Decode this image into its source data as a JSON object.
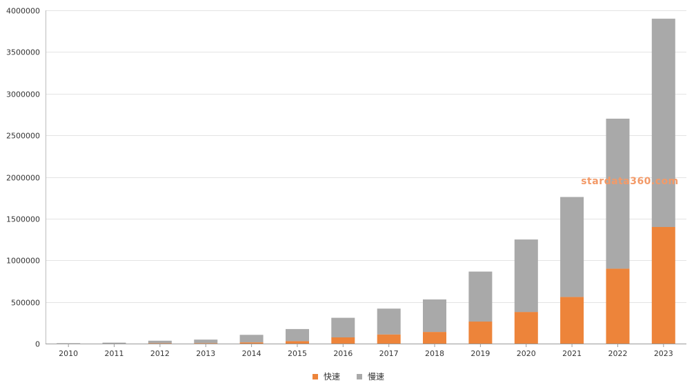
{
  "chart_data": {
    "type": "bar",
    "stacked": true,
    "categories": [
      "2010",
      "2011",
      "2012",
      "2013",
      "2014",
      "2015",
      "2016",
      "2017",
      "2018",
      "2019",
      "2020",
      "2021",
      "2022",
      "2023"
    ],
    "series": [
      {
        "name": "快速",
        "color": "#ed843a",
        "values": [
          0,
          0,
          5000,
          6000,
          15000,
          30000,
          75000,
          110000,
          140000,
          265000,
          380000,
          560000,
          900000,
          1400000
        ]
      },
      {
        "name": "慢速",
        "color": "#a9a9a9",
        "values": [
          5000,
          12000,
          30000,
          42000,
          90000,
          145000,
          235000,
          310000,
          390000,
          600000,
          870000,
          1200000,
          1800000,
          2500000
        ]
      }
    ],
    "ylim": [
      0,
      4000000
    ],
    "yticks": [
      0,
      500000,
      1000000,
      1500000,
      2000000,
      2500000,
      3000000,
      3500000,
      4000000
    ],
    "ytick_labels": [
      "0",
      "500000",
      "1000000",
      "1500000",
      "2000000",
      "2500000",
      "3000000",
      "3500000",
      "4000000"
    ],
    "grid": true,
    "legend_position": "bottom-center",
    "watermark": "stardata360.com"
  }
}
